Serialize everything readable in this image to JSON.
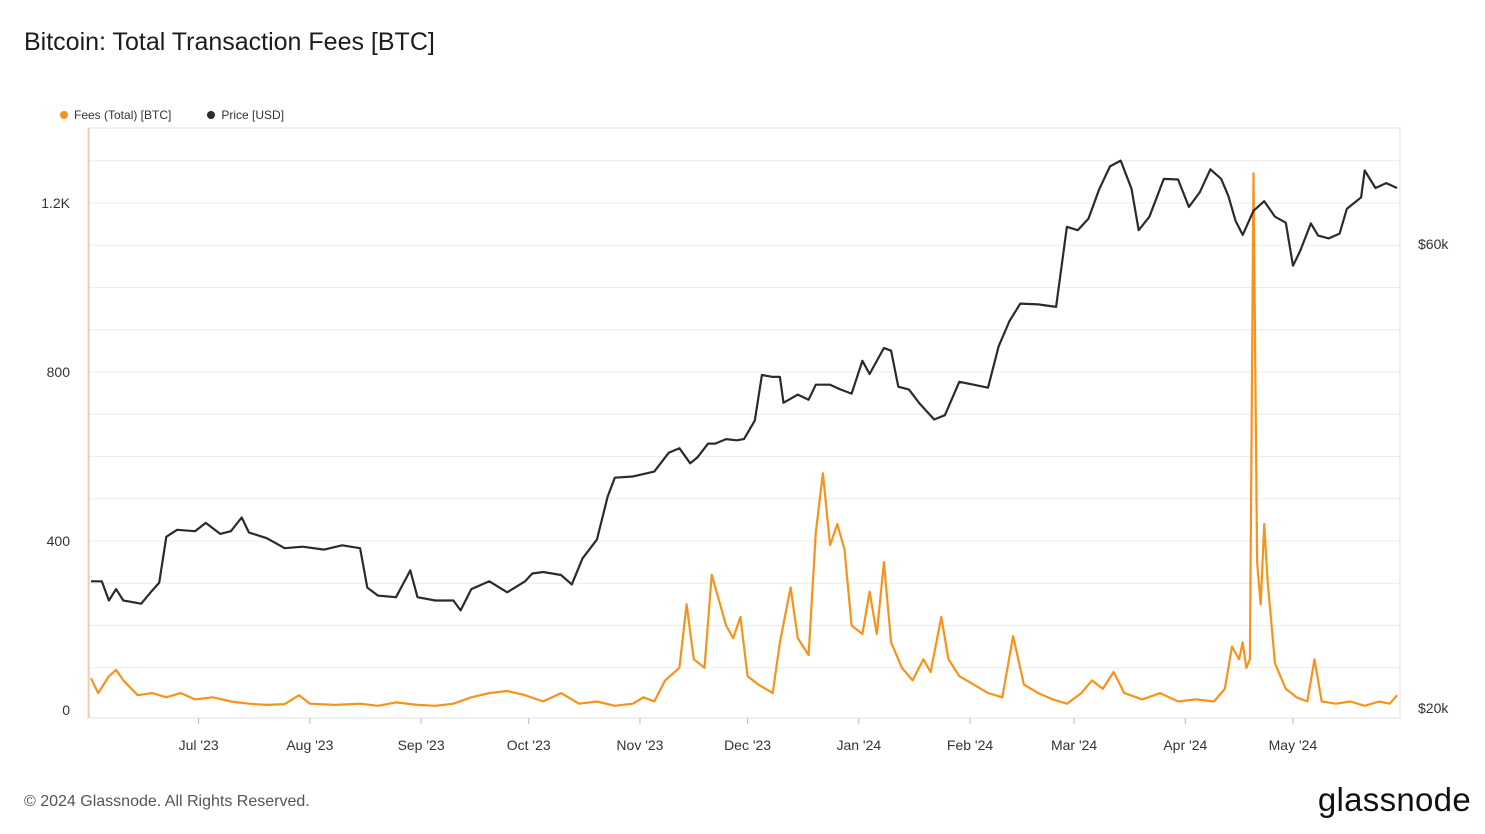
{
  "title": "Bitcoin: Total Transaction Fees [BTC]",
  "footer": "© 2024 Glassnode. All Rights Reserved.",
  "brand": "glassnode",
  "colors": {
    "fees": "#f7931a",
    "price": "#2b2b2b",
    "grid": "#ececec"
  },
  "chart_data": {
    "type": "line",
    "title": "Bitcoin: Total Transaction Fees [BTC]",
    "grid": true,
    "legend_position": "top-left",
    "x_range": [
      "2023-06-01",
      "2024-05-30"
    ],
    "x_ticks": [
      "Jul '23",
      "Aug '23",
      "Sep '23",
      "Oct '23",
      "Nov '23",
      "Dec '23",
      "Jan '24",
      "Feb '24",
      "Mar '24",
      "Apr '24",
      "May '24"
    ],
    "y_left": {
      "ticks": [
        "0",
        "400",
        "800",
        "1.2K"
      ],
      "tick_values": [
        0,
        400,
        800,
        1200
      ],
      "range": [
        0,
        1400
      ]
    },
    "y_right": {
      "ticks": [
        "$20k",
        "$60k"
      ],
      "tick_values": [
        20000,
        60000
      ],
      "range": [
        20000,
        76000
      ],
      "scale": "log"
    },
    "series": [
      {
        "name": "Fees (Total) [BTC]",
        "axis": "left",
        "points": [
          [
            "2023-06-01",
            75
          ],
          [
            "2023-06-03",
            40
          ],
          [
            "2023-06-06",
            80
          ],
          [
            "2023-06-08",
            95
          ],
          [
            "2023-06-10",
            70
          ],
          [
            "2023-06-14",
            35
          ],
          [
            "2023-06-18",
            40
          ],
          [
            "2023-06-22",
            30
          ],
          [
            "2023-06-26",
            40
          ],
          [
            "2023-06-30",
            25
          ],
          [
            "2023-07-05",
            30
          ],
          [
            "2023-07-10",
            20
          ],
          [
            "2023-07-15",
            15
          ],
          [
            "2023-07-20",
            12
          ],
          [
            "2023-07-25",
            14
          ],
          [
            "2023-07-29",
            35
          ],
          [
            "2023-08-01",
            15
          ],
          [
            "2023-08-08",
            12
          ],
          [
            "2023-08-15",
            15
          ],
          [
            "2023-08-20",
            10
          ],
          [
            "2023-08-25",
            18
          ],
          [
            "2023-08-31",
            12
          ],
          [
            "2023-09-05",
            10
          ],
          [
            "2023-09-10",
            15
          ],
          [
            "2023-09-15",
            30
          ],
          [
            "2023-09-20",
            40
          ],
          [
            "2023-09-25",
            45
          ],
          [
            "2023-09-30",
            35
          ],
          [
            "2023-10-05",
            20
          ],
          [
            "2023-10-10",
            40
          ],
          [
            "2023-10-15",
            15
          ],
          [
            "2023-10-20",
            20
          ],
          [
            "2023-10-25",
            10
          ],
          [
            "2023-10-30",
            15
          ],
          [
            "2023-11-02",
            30
          ],
          [
            "2023-11-05",
            20
          ],
          [
            "2023-11-08",
            70
          ],
          [
            "2023-11-12",
            100
          ],
          [
            "2023-11-14",
            250
          ],
          [
            "2023-11-16",
            120
          ],
          [
            "2023-11-19",
            100
          ],
          [
            "2023-11-21",
            320
          ],
          [
            "2023-11-23",
            260
          ],
          [
            "2023-11-25",
            200
          ],
          [
            "2023-11-27",
            170
          ],
          [
            "2023-11-29",
            220
          ],
          [
            "2023-12-01",
            80
          ],
          [
            "2023-12-04",
            60
          ],
          [
            "2023-12-08",
            40
          ],
          [
            "2023-12-10",
            160
          ],
          [
            "2023-12-13",
            290
          ],
          [
            "2023-12-15",
            170
          ],
          [
            "2023-12-18",
            130
          ],
          [
            "2023-12-20",
            420
          ],
          [
            "2023-12-22",
            560
          ],
          [
            "2023-12-24",
            390
          ],
          [
            "2023-12-26",
            440
          ],
          [
            "2023-12-28",
            380
          ],
          [
            "2023-12-30",
            200
          ],
          [
            "2024-01-02",
            180
          ],
          [
            "2024-01-04",
            280
          ],
          [
            "2024-01-06",
            180
          ],
          [
            "2024-01-08",
            350
          ],
          [
            "2024-01-10",
            160
          ],
          [
            "2024-01-13",
            100
          ],
          [
            "2024-01-16",
            70
          ],
          [
            "2024-01-19",
            120
          ],
          [
            "2024-01-21",
            90
          ],
          [
            "2024-01-24",
            220
          ],
          [
            "2024-01-26",
            120
          ],
          [
            "2024-01-29",
            80
          ],
          [
            "2024-02-02",
            60
          ],
          [
            "2024-02-06",
            40
          ],
          [
            "2024-02-10",
            30
          ],
          [
            "2024-02-13",
            175
          ],
          [
            "2024-02-16",
            60
          ],
          [
            "2024-02-20",
            40
          ],
          [
            "2024-02-24",
            25
          ],
          [
            "2024-02-28",
            15
          ],
          [
            "2024-03-03",
            40
          ],
          [
            "2024-03-06",
            70
          ],
          [
            "2024-03-09",
            50
          ],
          [
            "2024-03-12",
            90
          ],
          [
            "2024-03-15",
            40
          ],
          [
            "2024-03-20",
            25
          ],
          [
            "2024-03-25",
            40
          ],
          [
            "2024-03-30",
            20
          ],
          [
            "2024-04-04",
            25
          ],
          [
            "2024-04-09",
            20
          ],
          [
            "2024-04-12",
            50
          ],
          [
            "2024-04-14",
            150
          ],
          [
            "2024-04-16",
            120
          ],
          [
            "2024-04-17",
            160
          ],
          [
            "2024-04-18",
            100
          ],
          [
            "2024-04-19",
            120
          ],
          [
            "2024-04-20",
            1270
          ],
          [
            "2024-04-21",
            350
          ],
          [
            "2024-04-22",
            250
          ],
          [
            "2024-04-23",
            440
          ],
          [
            "2024-04-24",
            300
          ],
          [
            "2024-04-26",
            110
          ],
          [
            "2024-04-29",
            50
          ],
          [
            "2024-05-02",
            30
          ],
          [
            "2024-05-05",
            20
          ],
          [
            "2024-05-07",
            120
          ],
          [
            "2024-05-09",
            20
          ],
          [
            "2024-05-13",
            15
          ],
          [
            "2024-05-17",
            20
          ],
          [
            "2024-05-21",
            10
          ],
          [
            "2024-05-25",
            20
          ],
          [
            "2024-05-28",
            15
          ],
          [
            "2024-05-30",
            35
          ]
        ]
      },
      {
        "name": "Price [USD]",
        "axis": "right",
        "points": [
          [
            "2023-06-01",
            27000
          ],
          [
            "2023-06-04",
            27000
          ],
          [
            "2023-06-06",
            25800
          ],
          [
            "2023-06-08",
            26500
          ],
          [
            "2023-06-10",
            25800
          ],
          [
            "2023-06-15",
            25600
          ],
          [
            "2023-06-18",
            26400
          ],
          [
            "2023-06-20",
            26900
          ],
          [
            "2023-06-22",
            30000
          ],
          [
            "2023-06-25",
            30500
          ],
          [
            "2023-06-30",
            30400
          ],
          [
            "2023-07-03",
            31000
          ],
          [
            "2023-07-07",
            30200
          ],
          [
            "2023-07-10",
            30400
          ],
          [
            "2023-07-13",
            31400
          ],
          [
            "2023-07-15",
            30300
          ],
          [
            "2023-07-20",
            29900
          ],
          [
            "2023-07-25",
            29200
          ],
          [
            "2023-07-30",
            29300
          ],
          [
            "2023-08-05",
            29100
          ],
          [
            "2023-08-10",
            29400
          ],
          [
            "2023-08-15",
            29200
          ],
          [
            "2023-08-17",
            26600
          ],
          [
            "2023-08-20",
            26100
          ],
          [
            "2023-08-25",
            26000
          ],
          [
            "2023-08-29",
            27700
          ],
          [
            "2023-08-31",
            26000
          ],
          [
            "2023-09-05",
            25800
          ],
          [
            "2023-09-10",
            25800
          ],
          [
            "2023-09-12",
            25200
          ],
          [
            "2023-09-15",
            26500
          ],
          [
            "2023-09-20",
            27000
          ],
          [
            "2023-09-25",
            26300
          ],
          [
            "2023-09-30",
            27000
          ],
          [
            "2023-10-02",
            27500
          ],
          [
            "2023-10-05",
            27600
          ],
          [
            "2023-10-10",
            27400
          ],
          [
            "2023-10-13",
            26800
          ],
          [
            "2023-10-16",
            28500
          ],
          [
            "2023-10-20",
            29800
          ],
          [
            "2023-10-23",
            33000
          ],
          [
            "2023-10-25",
            34500
          ],
          [
            "2023-10-30",
            34600
          ],
          [
            "2023-11-05",
            35000
          ],
          [
            "2023-11-09",
            36600
          ],
          [
            "2023-11-12",
            37000
          ],
          [
            "2023-11-15",
            35700
          ],
          [
            "2023-11-17",
            36200
          ],
          [
            "2023-11-20",
            37400
          ],
          [
            "2023-11-22",
            37400
          ],
          [
            "2023-11-25",
            37800
          ],
          [
            "2023-11-28",
            37700
          ],
          [
            "2023-11-30",
            37800
          ],
          [
            "2023-12-03",
            39500
          ],
          [
            "2023-12-05",
            44000
          ],
          [
            "2023-12-08",
            43800
          ],
          [
            "2023-12-10",
            43800
          ],
          [
            "2023-12-11",
            41200
          ],
          [
            "2023-12-15",
            42000
          ],
          [
            "2023-12-18",
            41500
          ],
          [
            "2023-12-20",
            43000
          ],
          [
            "2023-12-24",
            43000
          ],
          [
            "2023-12-27",
            42500
          ],
          [
            "2023-12-30",
            42100
          ],
          [
            "2024-01-02",
            45500
          ],
          [
            "2024-01-04",
            44100
          ],
          [
            "2024-01-08",
            46900
          ],
          [
            "2024-01-10",
            46600
          ],
          [
            "2024-01-12",
            42800
          ],
          [
            "2024-01-15",
            42500
          ],
          [
            "2024-01-18",
            41100
          ],
          [
            "2024-01-22",
            39600
          ],
          [
            "2024-01-25",
            40000
          ],
          [
            "2024-01-29",
            43300
          ],
          [
            "2024-02-02",
            43000
          ],
          [
            "2024-02-06",
            42700
          ],
          [
            "2024-02-09",
            47100
          ],
          [
            "2024-02-12",
            50000
          ],
          [
            "2024-02-15",
            52100
          ],
          [
            "2024-02-20",
            52000
          ],
          [
            "2024-02-25",
            51700
          ],
          [
            "2024-02-28",
            62500
          ],
          [
            "2024-03-02",
            62000
          ],
          [
            "2024-03-05",
            63700
          ],
          [
            "2024-03-08",
            68300
          ],
          [
            "2024-03-11",
            72100
          ],
          [
            "2024-03-14",
            73100
          ],
          [
            "2024-03-17",
            68400
          ],
          [
            "2024-03-19",
            62000
          ],
          [
            "2024-03-22",
            64000
          ],
          [
            "2024-03-26",
            70000
          ],
          [
            "2024-03-30",
            69900
          ],
          [
            "2024-04-02",
            65500
          ],
          [
            "2024-04-05",
            67800
          ],
          [
            "2024-04-08",
            71600
          ],
          [
            "2024-04-11",
            70000
          ],
          [
            "2024-04-13",
            67200
          ],
          [
            "2024-04-15",
            63400
          ],
          [
            "2024-04-17",
            61300
          ],
          [
            "2024-04-20",
            64900
          ],
          [
            "2024-04-23",
            66400
          ],
          [
            "2024-04-26",
            64000
          ],
          [
            "2024-04-29",
            63100
          ],
          [
            "2024-05-01",
            57000
          ],
          [
            "2024-05-03",
            59000
          ],
          [
            "2024-05-06",
            63000
          ],
          [
            "2024-05-08",
            61200
          ],
          [
            "2024-05-11",
            60800
          ],
          [
            "2024-05-14",
            61500
          ],
          [
            "2024-05-16",
            65200
          ],
          [
            "2024-05-20",
            67000
          ],
          [
            "2024-05-21",
            71400
          ],
          [
            "2024-05-24",
            68500
          ],
          [
            "2024-05-27",
            69300
          ],
          [
            "2024-05-30",
            68500
          ]
        ]
      }
    ]
  }
}
